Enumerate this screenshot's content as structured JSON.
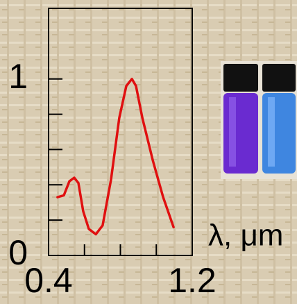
{
  "chart_data": {
    "type": "line",
    "xlabel": "λ, μm",
    "x": [
      0.45,
      0.485,
      0.516,
      0.543,
      0.566,
      0.593,
      0.624,
      0.663,
      0.701,
      0.748,
      0.794,
      0.833,
      0.864,
      0.887,
      0.922,
      0.98,
      1.038,
      1.096
    ],
    "y": [
      0.33,
      0.34,
      0.42,
      0.44,
      0.41,
      0.25,
      0.15,
      0.12,
      0.17,
      0.43,
      0.78,
      0.96,
      1.0,
      0.96,
      0.78,
      0.54,
      0.33,
      0.16
    ],
    "color": "#e01010",
    "xlim": [
      0.4,
      1.2
    ],
    "xticks": [
      0.4,
      1.2
    ],
    "xminorticks": [
      0.6,
      0.8,
      1.0
    ],
    "ylim": [
      0,
      1.4
    ],
    "yticks": [
      0,
      1
    ],
    "yminorticks": [
      0.2,
      0.4,
      0.6,
      0.8
    ]
  }
}
